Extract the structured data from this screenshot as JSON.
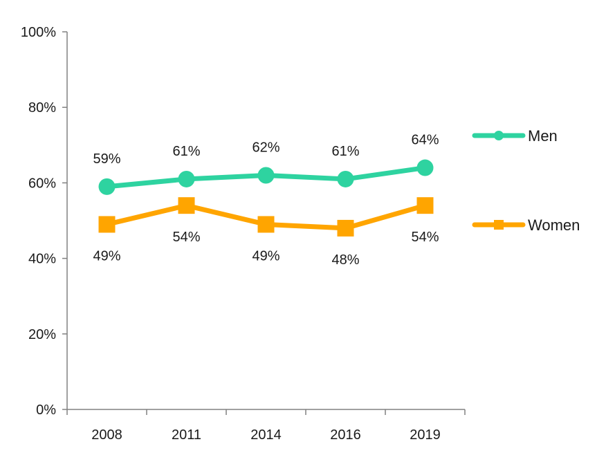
{
  "chart_data": {
    "type": "line",
    "categories": [
      "2008",
      "2011",
      "2014",
      "2016",
      "2019"
    ],
    "ylim": [
      0,
      100
    ],
    "yticks": [
      "0%",
      "20%",
      "40%",
      "60%",
      "80%",
      "100%"
    ],
    "grid": false,
    "legend_position": "right",
    "series": [
      {
        "name": "Men",
        "values": [
          59,
          61,
          62,
          61,
          64
        ],
        "labels": [
          "59%",
          "61%",
          "62%",
          "61%",
          "64%"
        ],
        "color": "#2ED3A0",
        "marker": "circle",
        "label_position": "above"
      },
      {
        "name": "Women",
        "values": [
          49,
          54,
          49,
          48,
          54
        ],
        "labels": [
          "49%",
          "54%",
          "49%",
          "48%",
          "54%"
        ],
        "color": "#FFA500",
        "marker": "square",
        "label_position": "below"
      }
    ]
  }
}
